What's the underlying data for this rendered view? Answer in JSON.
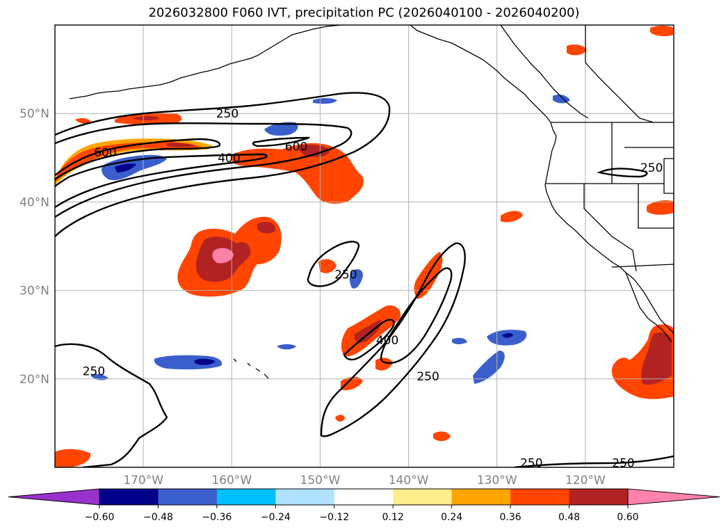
{
  "title": "2026032800 F060 IVT, precipitation PC (2026040100 - 2026040200)",
  "axes": {
    "lat_labels": [
      "50°N",
      "40°N",
      "30°N",
      "20°N"
    ],
    "lat_values": [
      50,
      40,
      30,
      20
    ],
    "lon_labels": [
      "170°W",
      "160°W",
      "150°W",
      "140°W",
      "130°W",
      "120°W"
    ],
    "lon_values": [
      -170,
      -160,
      -150,
      -140,
      -130,
      -120
    ],
    "lat_range": [
      10,
      60
    ],
    "lon_range": [
      -180,
      -110
    ]
  },
  "colorbar": {
    "ticks": [
      "−0.60",
      "−0.48",
      "−0.36",
      "−0.24",
      "−0.12",
      "0.12",
      "0.24",
      "0.36",
      "0.48",
      "0.60"
    ],
    "bounds": [
      -0.6,
      -0.48,
      -0.36,
      -0.24,
      -0.12,
      0.12,
      0.24,
      0.36,
      0.48,
      0.6
    ],
    "colors": [
      "#9932cc",
      "#00008b",
      "#3a5fcd",
      "#00bfff",
      "#b0e2ff",
      "#ffffff",
      "#ffec8b",
      "#ffa500",
      "#ff4500",
      "#b22222",
      "#ff82ab"
    ]
  },
  "contour_labels": [
    {
      "text": "250",
      "lon": -160.5,
      "lat": 50.0
    },
    {
      "text": "600",
      "lon": -174.3,
      "lat": 45.6
    },
    {
      "text": "400",
      "lon": -160.3,
      "lat": 45.0
    },
    {
      "text": "600",
      "lon": -152.7,
      "lat": 46.3
    },
    {
      "text": "250",
      "lon": -112.5,
      "lat": 43.9
    },
    {
      "text": "250",
      "lon": -147.1,
      "lat": 31.8
    },
    {
      "text": "250",
      "lon": -175.6,
      "lat": 20.9
    },
    {
      "text": "400",
      "lon": -142.4,
      "lat": 24.4
    },
    {
      "text": "250",
      "lon": -137.8,
      "lat": 20.3
    },
    {
      "text": "250",
      "lon": -126.1,
      "lat": 10.5
    },
    {
      "text": "250",
      "lon": -115.7,
      "lat": 10.5
    }
  ],
  "colors": {
    "frame": "#000000",
    "grid": "#b0b0b0",
    "land": "#000000"
  }
}
